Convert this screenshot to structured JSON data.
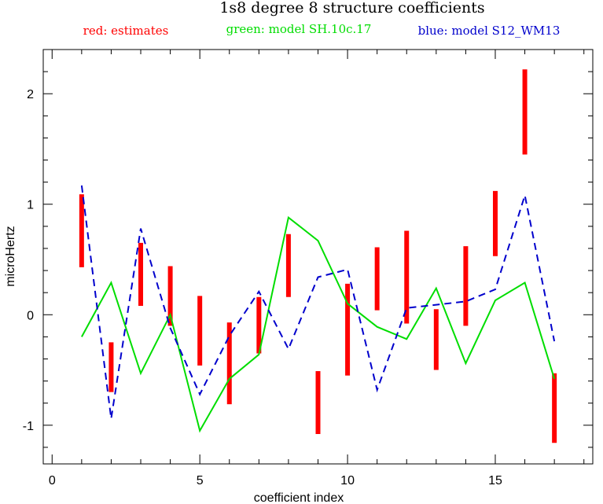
{
  "chart_data": {
    "type": "line",
    "title": "1s8 degree 8 structure coefficients",
    "legend": [
      {
        "label": "red: estimates",
        "color": "#ff0000"
      },
      {
        "label": "green: model SH.10c.17",
        "color": "#00dd00"
      },
      {
        "label": "blue: model S12_WM13",
        "color": "#0000cc"
      }
    ],
    "xlabel": "coefficient index",
    "ylabel": "microHertz",
    "xlim": [
      -0.3,
      18.3
    ],
    "ylim": [
      -1.35,
      2.4
    ],
    "x_ticks": [
      0,
      5,
      10,
      15
    ],
    "x_tick_labels": [
      "0",
      "5",
      "10",
      "15"
    ],
    "y_ticks": [
      -1,
      0,
      1,
      2
    ],
    "y_tick_labels": [
      "-1",
      "0",
      "1",
      "2"
    ],
    "x_minor_step": 1,
    "y_minor_step": 0.2,
    "estimates": [
      {
        "x": 1,
        "low": 0.43,
        "high": 1.09
      },
      {
        "x": 2,
        "low": -0.7,
        "high": -0.25
      },
      {
        "x": 3,
        "low": 0.08,
        "high": 0.65
      },
      {
        "x": 4,
        "low": -0.1,
        "high": 0.44
      },
      {
        "x": 5,
        "low": -0.46,
        "high": 0.17
      },
      {
        "x": 6,
        "low": -0.81,
        "high": -0.07
      },
      {
        "x": 7,
        "low": -0.35,
        "high": 0.16
      },
      {
        "x": 8,
        "low": 0.16,
        "high": 0.73
      },
      {
        "x": 9,
        "low": -1.08,
        "high": -0.51
      },
      {
        "x": 10,
        "low": -0.55,
        "high": 0.28
      },
      {
        "x": 11,
        "low": 0.04,
        "high": 0.61
      },
      {
        "x": 12,
        "low": -0.08,
        "high": 0.76
      },
      {
        "x": 13,
        "low": -0.5,
        "high": 0.05
      },
      {
        "x": 14,
        "low": -0.1,
        "high": 0.62
      },
      {
        "x": 15,
        "low": 0.53,
        "high": 1.12
      },
      {
        "x": 16,
        "low": 1.45,
        "high": 2.22
      },
      {
        "x": 17,
        "low": -1.16,
        "high": -0.53
      }
    ],
    "series": [
      {
        "name": "model SH.10c.17",
        "color": "#00dd00",
        "style": "solid",
        "x": [
          1,
          2,
          3,
          4,
          5,
          6,
          7,
          8,
          9,
          10,
          11,
          12,
          13,
          14,
          15,
          16,
          17
        ],
        "values": [
          -0.2,
          0.29,
          -0.53,
          0.0,
          -1.05,
          -0.58,
          -0.36,
          0.88,
          0.67,
          0.1,
          -0.11,
          -0.22,
          0.24,
          -0.44,
          0.13,
          0.29,
          -0.58
        ]
      },
      {
        "name": "model S12_WM13",
        "color": "#0000cc",
        "style": "dashed",
        "x": [
          1,
          2,
          3,
          4,
          5,
          6,
          7,
          8,
          9,
          10,
          11,
          12,
          13,
          14,
          15,
          16,
          17
        ],
        "values": [
          1.17,
          -0.94,
          0.78,
          -0.12,
          -0.72,
          -0.19,
          0.21,
          -0.31,
          0.34,
          0.41,
          -0.68,
          0.06,
          0.09,
          0.12,
          0.23,
          1.08,
          -0.24
        ]
      }
    ]
  }
}
